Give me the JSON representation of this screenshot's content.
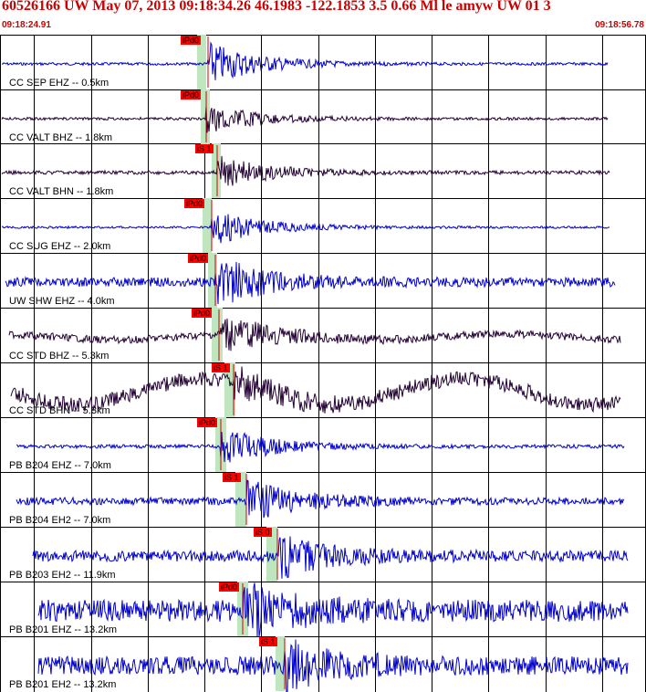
{
  "header": {
    "title": "60526166 UW May 07, 2013 09:18:34.26   46.1983 -122.1853  3.5 0.66 Ml le amyw UW 01   3",
    "time_start": "09:18:24.91",
    "time_end": "09:18:56.78"
  },
  "colors": {
    "title": "#cc0000",
    "trace_vertical": "#0000cc",
    "trace_horizontal": "#220033",
    "pick_flag": "#ff0000",
    "pick_band": "#bfe6bf"
  },
  "traces": [
    {
      "label": "CC SEP EHZ -- 0.5km",
      "pick": "iPd0",
      "color": "trace_vertical"
    },
    {
      "label": "CC VALT BHZ -- 1.8km",
      "pick": "iPd0",
      "color": "trace_horizontal"
    },
    {
      "label": "CC VALT BHN -- 1.8km",
      "pick": "iS 1",
      "color": "trace_horizontal"
    },
    {
      "label": "CC SUG EHZ -- 2.0km",
      "pick": "iPd0",
      "color": "trace_vertical"
    },
    {
      "label": "UW SHW EHZ -- 4.0km",
      "pick": "iPd0",
      "color": "trace_vertical"
    },
    {
      "label": "CC STD BHZ -- 5.3km",
      "pick": "iPd0",
      "color": "trace_horizontal"
    },
    {
      "label": "CC STD BHN -- 5.3km",
      "pick": "iS 1",
      "color": "trace_horizontal"
    },
    {
      "label": "PB B204 EHZ -- 7.0km",
      "pick": "iPd0",
      "color": "trace_vertical"
    },
    {
      "label": "PB B204 EH2 -- 7.0km",
      "pick": "iS 1",
      "color": "trace_vertical"
    },
    {
      "label": "PB B203 EH2 -- 11.9km",
      "pick": "iS 0",
      "color": "trace_vertical"
    },
    {
      "label": "PB B201 EHZ -- 13.2km",
      "pick": "iPd0",
      "color": "trace_vertical"
    },
    {
      "label": "PB B201 EH2 -- 13.2km",
      "pick": "iS 1",
      "color": "trace_vertical"
    }
  ]
}
